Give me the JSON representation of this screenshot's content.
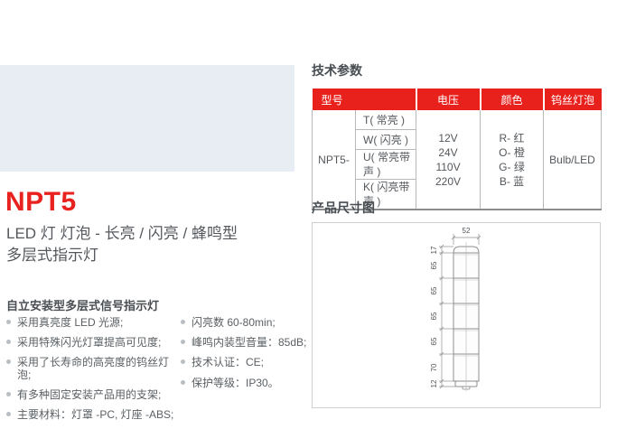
{
  "product": {
    "model": "NPT5",
    "subtitle_line1": "LED 灯 灯泡 - 长亮 / 闪亮 / 蜂鸣型",
    "subtitle_line2": "多层式指示灯",
    "feature_heading": "自立安装型多层式信号指示灯",
    "features_left": [
      "采用真亮度 LED 光源;",
      "采用特殊闪光灯罩提高可见度;",
      "采用了长寿命的高亮度的钨丝灯泡;",
      "有多种固定安装产品用的支架;",
      "主要材料：灯罩 -PC, 灯座 -ABS;"
    ],
    "features_right": [
      "闪亮数 60-80min;",
      "峰鸣内装型音量：85dB;",
      "技术认证：CE;",
      "保护等级：IP30。"
    ]
  },
  "photo": {
    "band_color": "#e7edf2",
    "towers": [
      {
        "layers": [
          "red"
        ]
      },
      {
        "layers": [
          "red",
          "green"
        ]
      },
      {
        "layers": [
          "red",
          "orange",
          "green"
        ]
      },
      {
        "layers": [
          "red",
          "orange",
          "green",
          "blue"
        ]
      },
      {
        "layers": [
          "red",
          "orange",
          "green",
          "blue",
          "clear"
        ]
      }
    ],
    "layer_colors": {
      "red": "#d9413d",
      "orange": "#efa02e",
      "green": "#2fa355",
      "blue": "#2e78b5",
      "clear": "#e9e7dc",
      "cream": "#f0ecdf"
    }
  },
  "tech_params": {
    "section_title": "技术参数",
    "header_bg": "#e8211d",
    "headers": {
      "model": "型号",
      "voltage": "电压",
      "color": "颜色",
      "bulb": "钨丝灯泡"
    },
    "model_prefix": "NPT5-",
    "types": [
      "T( 常亮 )",
      "W( 闪亮 )",
      "U( 常亮带声 )",
      "K( 闪亮带声 )"
    ],
    "voltages": [
      "12V",
      "24V",
      "110V",
      "220V"
    ],
    "colors": [
      "R- 红",
      "O- 橙",
      "G- 绿",
      "B- 蓝"
    ],
    "bulb": "Bulb/LED"
  },
  "dimensions": {
    "section_title": "产品尺寸图",
    "top_width": "52",
    "vertical": [
      "17",
      "65",
      "65",
      "65",
      "65",
      "70",
      "12"
    ]
  }
}
